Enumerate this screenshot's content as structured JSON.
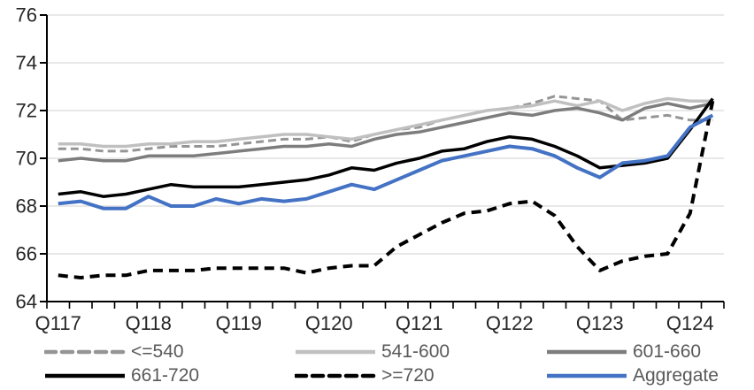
{
  "chart_data": {
    "type": "line",
    "title": "",
    "x_categories": [
      "Q117",
      "Q217",
      "Q317",
      "Q417",
      "Q118",
      "Q218",
      "Q318",
      "Q418",
      "Q119",
      "Q219",
      "Q319",
      "Q419",
      "Q120",
      "Q220",
      "Q320",
      "Q420",
      "Q121",
      "Q221",
      "Q321",
      "Q421",
      "Q122",
      "Q222",
      "Q322",
      "Q422",
      "Q123",
      "Q223",
      "Q323",
      "Q423",
      "Q124",
      "Q224"
    ],
    "x_axis_visible_labels": [
      "Q117",
      "Q118",
      "Q119",
      "Q120",
      "Q121",
      "Q122",
      "Q123",
      "Q124"
    ],
    "yticks": [
      "76",
      "74",
      "72",
      "70",
      "68",
      "66",
      "64"
    ],
    "ylim": [
      64,
      76
    ],
    "grid": true,
    "legend_position": "bottom",
    "colors": {
      "background": "#ffffff",
      "gridline": "#d9d9d9",
      "axis": "#000000",
      "tick_label": "#262626",
      "legend_text": "#595959"
    },
    "series": [
      {
        "id": "le540",
        "name": "<=540",
        "color": "#959595",
        "style": "dashed",
        "width": 3,
        "values": [
          70.4,
          70.4,
          70.3,
          70.3,
          70.4,
          70.5,
          70.5,
          70.5,
          70.6,
          70.7,
          70.8,
          70.8,
          70.9,
          70.7,
          71.0,
          71.2,
          71.3,
          71.6,
          71.8,
          72.0,
          72.1,
          72.3,
          72.6,
          72.5,
          72.4,
          71.6,
          71.7,
          71.8,
          71.6,
          71.6
        ]
      },
      {
        "id": "s541_600",
        "name": "541-600",
        "color": "#c0c0c0",
        "style": "solid",
        "width": 3.5,
        "values": [
          70.6,
          70.6,
          70.5,
          70.5,
          70.6,
          70.6,
          70.7,
          70.7,
          70.8,
          70.9,
          71.0,
          71.0,
          70.9,
          70.8,
          71.0,
          71.2,
          71.4,
          71.6,
          71.8,
          72.0,
          72.1,
          72.2,
          72.4,
          72.2,
          72.4,
          72.0,
          72.3,
          72.5,
          72.4,
          72.4
        ]
      },
      {
        "id": "s601_660",
        "name": "601-660",
        "color": "#7d7d7d",
        "style": "solid",
        "width": 3.5,
        "values": [
          69.9,
          70.0,
          69.9,
          69.9,
          70.1,
          70.1,
          70.1,
          70.2,
          70.3,
          70.4,
          70.5,
          70.5,
          70.6,
          70.5,
          70.8,
          71.0,
          71.1,
          71.3,
          71.5,
          71.7,
          71.9,
          71.8,
          72.0,
          72.1,
          71.9,
          71.6,
          72.1,
          72.3,
          72.1,
          72.3
        ]
      },
      {
        "id": "s661_720",
        "name": "661-720",
        "color": "#000000",
        "style": "solid",
        "width": 3.5,
        "values": [
          68.5,
          68.6,
          68.4,
          68.5,
          68.7,
          68.9,
          68.8,
          68.8,
          68.8,
          68.9,
          69.0,
          69.1,
          69.3,
          69.6,
          69.5,
          69.8,
          70.0,
          70.3,
          70.4,
          70.7,
          70.9,
          70.8,
          70.5,
          70.1,
          69.6,
          69.7,
          69.8,
          70.0,
          71.2,
          72.5
        ]
      },
      {
        "id": "ge720",
        "name": ">=720",
        "color": "#000000",
        "style": "dashed",
        "width": 4,
        "values": [
          65.1,
          65.0,
          65.1,
          65.1,
          65.3,
          65.3,
          65.3,
          65.4,
          65.4,
          65.4,
          65.4,
          65.2,
          65.4,
          65.5,
          65.5,
          66.3,
          66.8,
          67.3,
          67.7,
          67.8,
          68.1,
          68.2,
          67.6,
          66.3,
          65.3,
          65.7,
          65.9,
          66.0,
          67.7,
          72.4
        ]
      },
      {
        "id": "aggregate",
        "name": "Aggregate",
        "color": "#4472c4",
        "style": "solid",
        "width": 4,
        "values": [
          68.1,
          68.2,
          67.9,
          67.9,
          68.4,
          68.0,
          68.0,
          68.3,
          68.1,
          68.3,
          68.2,
          68.3,
          68.6,
          68.9,
          68.7,
          69.1,
          69.5,
          69.9,
          70.1,
          70.3,
          70.5,
          70.4,
          70.1,
          69.6,
          69.2,
          69.8,
          69.9,
          70.1,
          71.3,
          71.8
        ]
      }
    ]
  }
}
